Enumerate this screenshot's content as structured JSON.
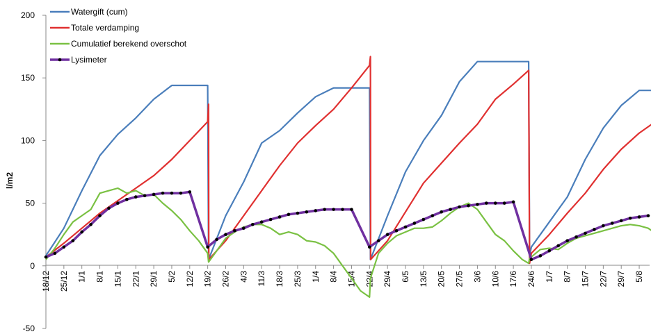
{
  "chart_data": {
    "type": "line",
    "title": "",
    "xlabel": "",
    "ylabel": "l/m2",
    "ylim": [
      -50,
      200
    ],
    "yticks": [
      -50,
      0,
      50,
      100,
      150,
      200
    ],
    "x_tick_labels": [
      "18/12",
      "25/12",
      "1/1",
      "8/1",
      "15/1",
      "22/1",
      "29/1",
      "5/2",
      "12/2",
      "19/2",
      "26/2",
      "4/3",
      "11/3",
      "18/3",
      "25/3",
      "1/4",
      "8/4",
      "15/4",
      "22/4",
      "29/4",
      "6/5",
      "13/5",
      "20/5",
      "27/5",
      "3/6",
      "10/6",
      "17/6",
      "24/6",
      "1/7",
      "8/7",
      "15/7",
      "22/7",
      "29/7",
      "5/8"
    ],
    "legend": {
      "placement": "top-left"
    },
    "grid": false,
    "series": [
      {
        "name": "Watergift (cum)",
        "color": "#4a7ebb",
        "points": [
          [
            0,
            8
          ],
          [
            1,
            30
          ],
          [
            2,
            60
          ],
          [
            3,
            88
          ],
          [
            4,
            105
          ],
          [
            5,
            118
          ],
          [
            6,
            133
          ],
          [
            7,
            144
          ],
          [
            8,
            144
          ],
          [
            9,
            144
          ],
          [
            9.05,
            5
          ],
          [
            10,
            40
          ],
          [
            11,
            67
          ],
          [
            12,
            98
          ],
          [
            13,
            108
          ],
          [
            14,
            122
          ],
          [
            15,
            135
          ],
          [
            16,
            142
          ],
          [
            17,
            142
          ],
          [
            18,
            142
          ],
          [
            18.05,
            5
          ],
          [
            19,
            40
          ],
          [
            20,
            75
          ],
          [
            21,
            100
          ],
          [
            22,
            120
          ],
          [
            23,
            147
          ],
          [
            24,
            163
          ],
          [
            25,
            163
          ],
          [
            26,
            163
          ],
          [
            26.85,
            163
          ],
          [
            26.9,
            8
          ],
          [
            27,
            15
          ],
          [
            28,
            35
          ],
          [
            29,
            55
          ],
          [
            30,
            85
          ],
          [
            31,
            110
          ],
          [
            32,
            128
          ],
          [
            33,
            140
          ],
          [
            33.8,
            140
          ]
        ]
      },
      {
        "name": "Totale verdamping",
        "color": "#e03030",
        "points": [
          [
            0,
            7
          ],
          [
            1,
            18
          ],
          [
            2,
            30
          ],
          [
            3,
            42
          ],
          [
            4,
            52
          ],
          [
            5,
            62
          ],
          [
            6,
            72
          ],
          [
            7,
            85
          ],
          [
            8,
            100
          ],
          [
            9,
            115
          ],
          [
            9.05,
            129
          ],
          [
            9.06,
            5
          ],
          [
            10,
            20
          ],
          [
            11,
            40
          ],
          [
            12,
            60
          ],
          [
            13,
            80
          ],
          [
            14,
            98
          ],
          [
            15,
            112
          ],
          [
            16,
            125
          ],
          [
            17,
            142
          ],
          [
            18,
            160
          ],
          [
            18.05,
            167
          ],
          [
            18.06,
            5
          ],
          [
            19,
            20
          ],
          [
            20,
            43
          ],
          [
            21,
            66
          ],
          [
            22,
            82
          ],
          [
            23,
            98
          ],
          [
            24,
            113
          ],
          [
            25,
            133
          ],
          [
            26,
            145
          ],
          [
            26.85,
            156
          ],
          [
            26.9,
            2
          ],
          [
            27,
            10
          ],
          [
            28,
            25
          ],
          [
            29,
            42
          ],
          [
            30,
            58
          ],
          [
            31,
            77
          ],
          [
            32,
            93
          ],
          [
            33,
            106
          ],
          [
            33.8,
            114
          ]
        ]
      },
      {
        "name": "Cumulatief berekend overschot",
        "color": "#7ac143",
        "points": [
          [
            0,
            5
          ],
          [
            0.5,
            14
          ],
          [
            1,
            25
          ],
          [
            1.5,
            35
          ],
          [
            2,
            40
          ],
          [
            2.5,
            45
          ],
          [
            3,
            58
          ],
          [
            3.5,
            60
          ],
          [
            4,
            62
          ],
          [
            4.5,
            58
          ],
          [
            5,
            60
          ],
          [
            5.5,
            56
          ],
          [
            6,
            57
          ],
          [
            6.5,
            50
          ],
          [
            7,
            44
          ],
          [
            7.5,
            37
          ],
          [
            8,
            28
          ],
          [
            8.5,
            20
          ],
          [
            9,
            10
          ],
          [
            9.05,
            3
          ],
          [
            9.5,
            12
          ],
          [
            10,
            22
          ],
          [
            10.5,
            27
          ],
          [
            11,
            31
          ],
          [
            11.5,
            33
          ],
          [
            12,
            33
          ],
          [
            12.5,
            30
          ],
          [
            13,
            25
          ],
          [
            13.5,
            27
          ],
          [
            14,
            25
          ],
          [
            14.5,
            20
          ],
          [
            15,
            19
          ],
          [
            15.5,
            16
          ],
          [
            16,
            10
          ],
          [
            16.5,
            0
          ],
          [
            17,
            -10
          ],
          [
            17.5,
            -20
          ],
          [
            18,
            -25
          ],
          [
            18.05,
            -10
          ],
          [
            18.5,
            10
          ],
          [
            19,
            18
          ],
          [
            19.5,
            24
          ],
          [
            20,
            27
          ],
          [
            20.5,
            30
          ],
          [
            21,
            30
          ],
          [
            21.5,
            31
          ],
          [
            22,
            36
          ],
          [
            22.5,
            42
          ],
          [
            23,
            47
          ],
          [
            23.5,
            50
          ],
          [
            24,
            45
          ],
          [
            24.5,
            35
          ],
          [
            25,
            25
          ],
          [
            25.5,
            20
          ],
          [
            26,
            12
          ],
          [
            26.5,
            5
          ],
          [
            26.85,
            2
          ],
          [
            26.9,
            6
          ],
          [
            27.5,
            13
          ],
          [
            28,
            14
          ],
          [
            28.5,
            13
          ],
          [
            29,
            18
          ],
          [
            29.5,
            22
          ],
          [
            30,
            24
          ],
          [
            30.5,
            26
          ],
          [
            31,
            28
          ],
          [
            31.5,
            30
          ],
          [
            32,
            32
          ],
          [
            32.5,
            33
          ],
          [
            33,
            32
          ],
          [
            33.5,
            30
          ],
          [
            33.8,
            27
          ]
        ]
      },
      {
        "name": "Lysimeter",
        "color": "#7030a0",
        "points": [
          [
            0,
            7
          ],
          [
            0.5,
            10
          ],
          [
            1,
            15
          ],
          [
            1.5,
            20
          ],
          [
            2,
            27
          ],
          [
            2.5,
            33
          ],
          [
            3,
            40
          ],
          [
            3.5,
            46
          ],
          [
            4,
            50
          ],
          [
            4.5,
            53
          ],
          [
            5,
            55
          ],
          [
            5.5,
            56
          ],
          [
            6,
            57
          ],
          [
            6.5,
            58
          ],
          [
            7,
            58
          ],
          [
            7.5,
            58
          ],
          [
            8,
            59
          ],
          [
            9,
            15
          ],
          [
            9.5,
            21
          ],
          [
            10,
            25
          ],
          [
            10.5,
            28
          ],
          [
            11,
            30
          ],
          [
            11.5,
            33
          ],
          [
            12,
            35
          ],
          [
            12.5,
            37
          ],
          [
            13,
            39
          ],
          [
            13.5,
            41
          ],
          [
            14,
            42
          ],
          [
            14.5,
            43
          ],
          [
            15,
            44
          ],
          [
            15.5,
            45
          ],
          [
            16,
            45
          ],
          [
            16.5,
            45
          ],
          [
            17,
            45
          ],
          [
            18,
            15
          ],
          [
            18.5,
            20
          ],
          [
            19,
            25
          ],
          [
            19.5,
            28
          ],
          [
            20,
            31
          ],
          [
            20.5,
            34
          ],
          [
            21,
            37
          ],
          [
            21.5,
            40
          ],
          [
            22,
            43
          ],
          [
            22.5,
            45
          ],
          [
            23,
            47
          ],
          [
            23.5,
            48
          ],
          [
            24,
            49
          ],
          [
            24.5,
            50
          ],
          [
            25,
            50
          ],
          [
            25.5,
            50
          ],
          [
            26,
            51
          ],
          [
            27,
            5
          ],
          [
            27.5,
            8
          ],
          [
            28,
            12
          ],
          [
            28.5,
            16
          ],
          [
            29,
            20
          ],
          [
            29.5,
            23
          ],
          [
            30,
            26
          ],
          [
            30.5,
            29
          ],
          [
            31,
            32
          ],
          [
            31.5,
            34
          ],
          [
            32,
            36
          ],
          [
            32.5,
            38
          ],
          [
            33,
            39
          ],
          [
            33.5,
            40
          ]
        ]
      }
    ]
  }
}
